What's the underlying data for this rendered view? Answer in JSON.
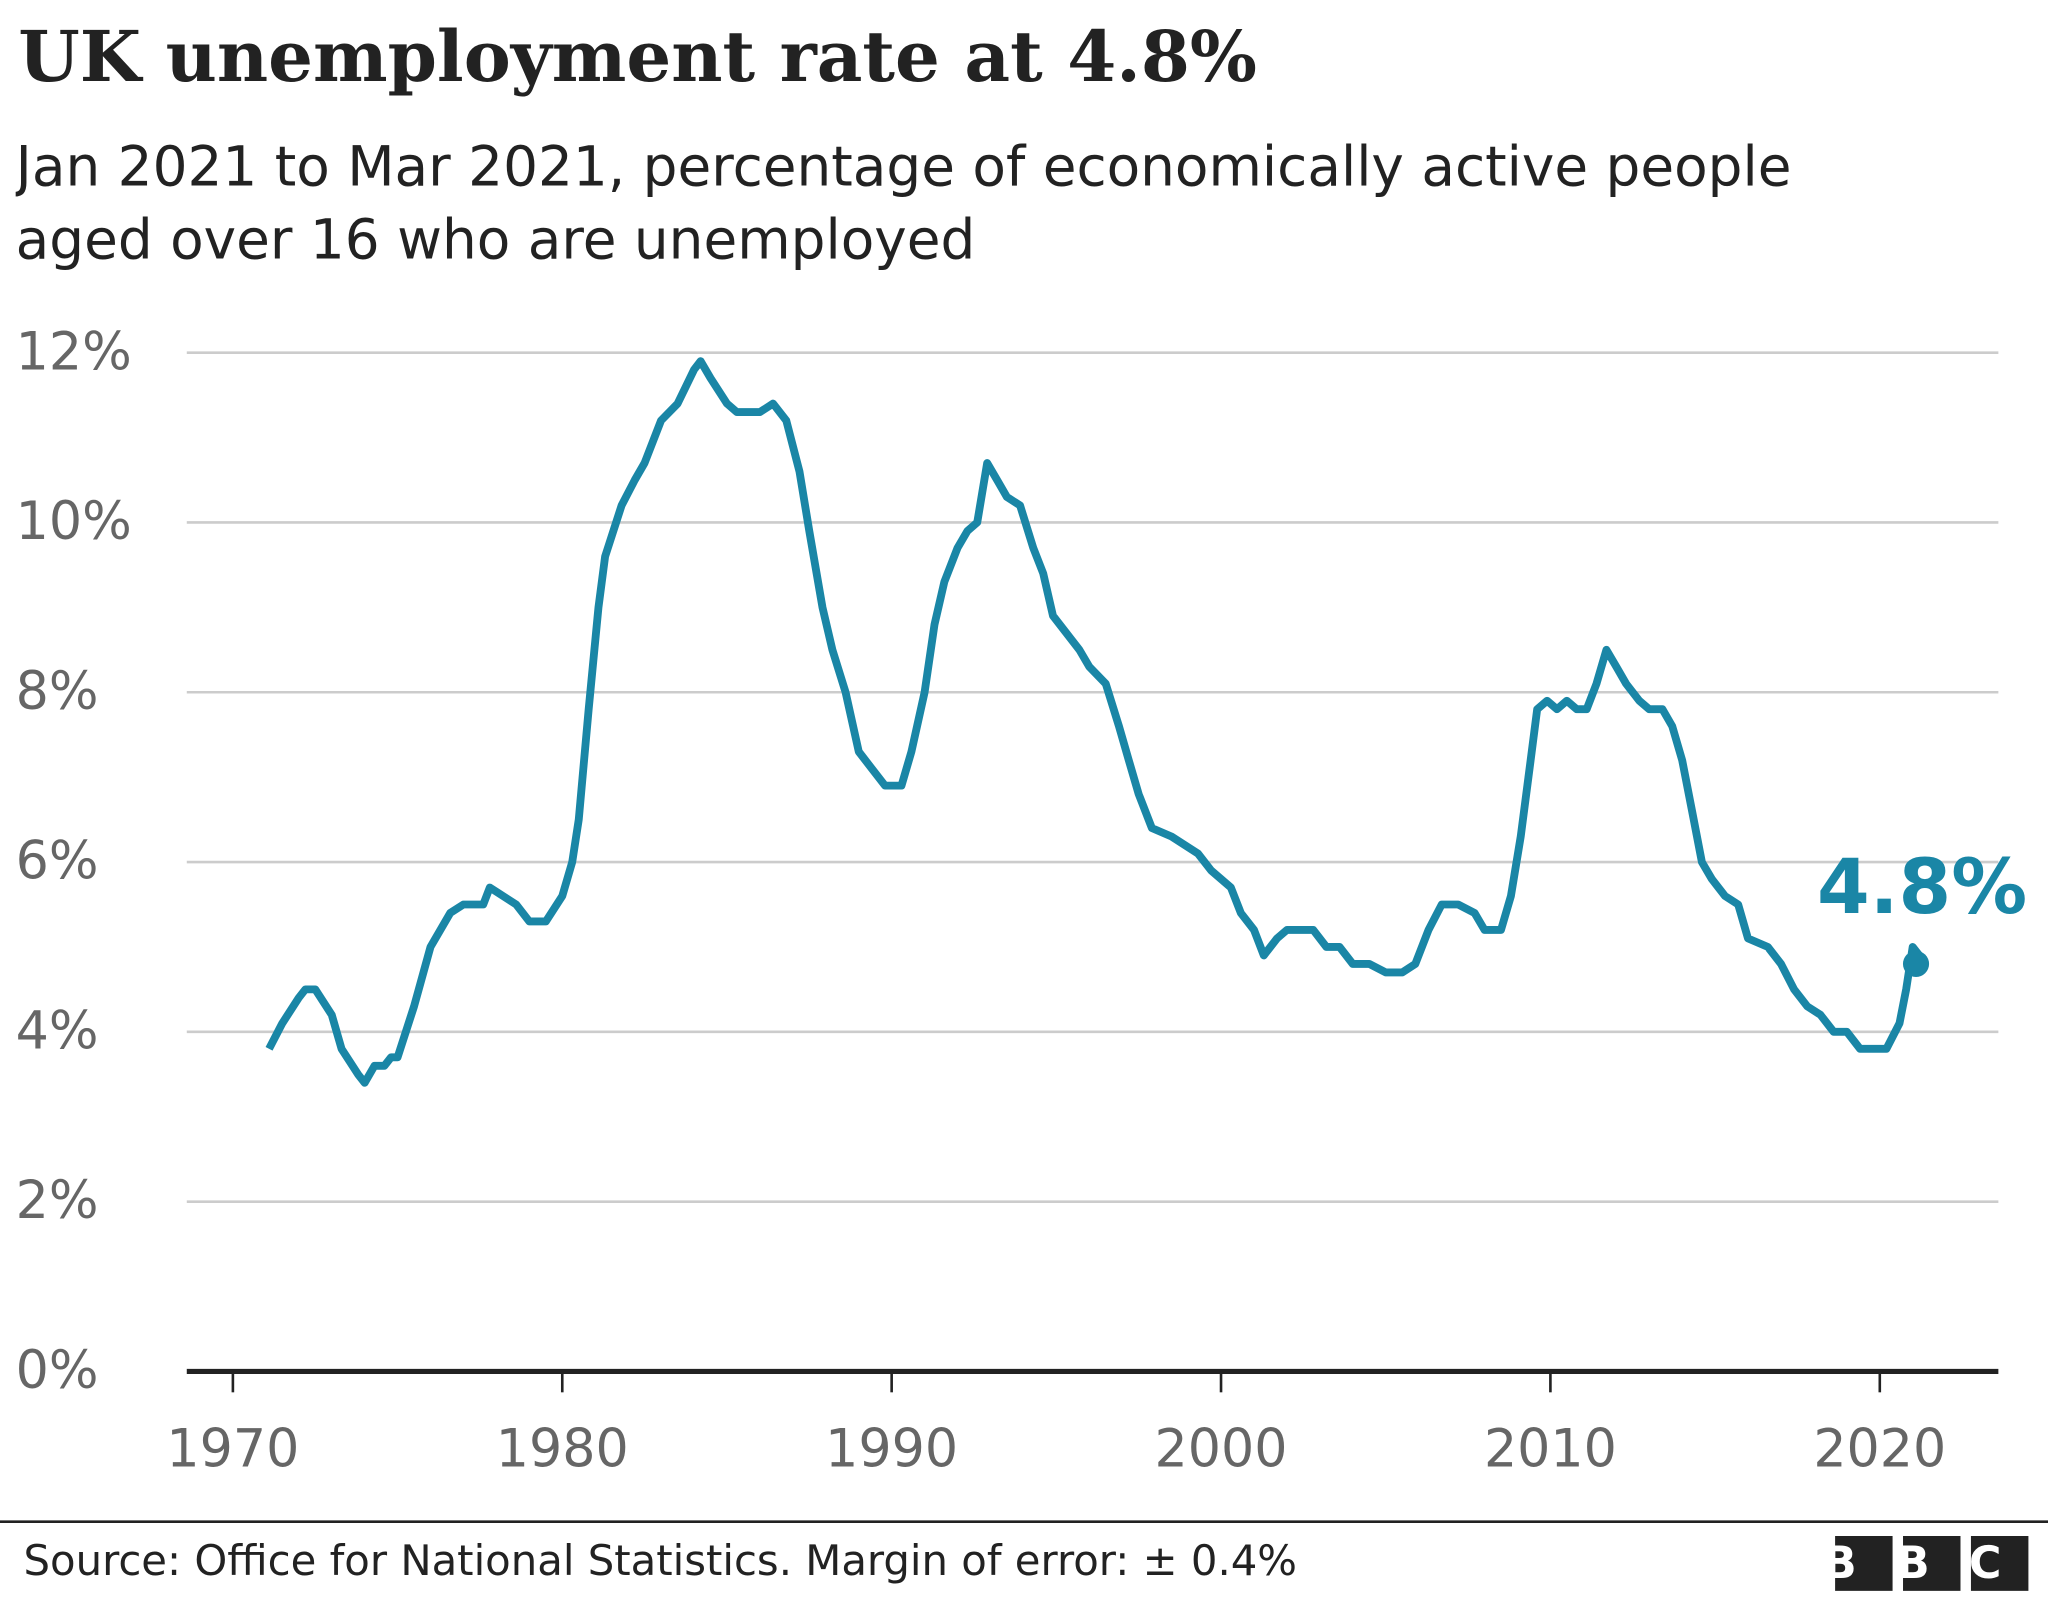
{
  "chart_data": {
    "type": "line",
    "title": "UK unemployment rate at 4.8%",
    "subtitle": "Jan 2021 to Mar 2021, percentage of economically active people aged over 16 who are unemployed",
    "source": "Source: Office for National Statistics. Margin of error: ± 0.4%",
    "logo": "BBC",
    "color": "#1a86a6",
    "x": [
      1971.1,
      1971.5,
      1972.0,
      1972.2,
      1972.5,
      1973.0,
      1973.3,
      1973.8,
      1974.0,
      1974.3,
      1974.6,
      1974.8,
      1975.0,
      1975.5,
      1976.0,
      1976.6,
      1977.0,
      1977.6,
      1977.8,
      1978.2,
      1978.6,
      1979.0,
      1979.5,
      1980.0,
      1980.3,
      1980.5,
      1980.8,
      1981.1,
      1981.3,
      1981.8,
      1982.2,
      1982.5,
      1983.0,
      1983.5,
      1984.0,
      1984.2,
      1984.5,
      1985.0,
      1985.3,
      1986.0,
      1986.4,
      1986.8,
      1987.2,
      1987.5,
      1987.9,
      1988.2,
      1988.6,
      1989.0,
      1989.4,
      1989.8,
      1990.3,
      1990.6,
      1991.0,
      1991.3,
      1991.6,
      1992.0,
      1992.3,
      1992.6,
      1992.9,
      1993.2,
      1993.5,
      1993.9,
      1994.3,
      1994.6,
      1994.9,
      1995.3,
      1995.7,
      1996.0,
      1996.5,
      1996.9,
      1997.2,
      1997.5,
      1997.9,
      1998.5,
      1998.9,
      1999.3,
      1999.7,
      2000.3,
      2000.6,
      2001.0,
      2001.3,
      2001.7,
      2002.0,
      2002.5,
      2002.8,
      2003.2,
      2003.6,
      2004.0,
      2004.5,
      2005.0,
      2005.5,
      2005.9,
      2006.3,
      2006.7,
      2007.2,
      2007.7,
      2008.0,
      2008.5,
      2008.8,
      2009.1,
      2009.4,
      2009.6,
      2009.9,
      2010.2,
      2010.5,
      2010.8,
      2011.1,
      2011.4,
      2011.7,
      2012.0,
      2012.3,
      2012.7,
      2013.0,
      2013.4,
      2013.7,
      2014.0,
      2014.3,
      2014.6,
      2014.9,
      2015.3,
      2015.7,
      2016.0,
      2016.6,
      2017.0,
      2017.4,
      2017.8,
      2018.2,
      2018.6,
      2019.0,
      2019.4,
      2019.8,
      2020.2,
      2020.6,
      2020.8,
      2021.0,
      2021.2
    ],
    "values": [
      3.8,
      4.1,
      4.4,
      4.5,
      4.5,
      4.2,
      3.8,
      3.5,
      3.4,
      3.6,
      3.6,
      3.7,
      3.7,
      4.3,
      5.0,
      5.4,
      5.5,
      5.5,
      5.7,
      5.6,
      5.5,
      5.3,
      5.3,
      5.6,
      6.0,
      6.5,
      7.8,
      9.0,
      9.6,
      10.2,
      10.5,
      10.7,
      11.2,
      11.4,
      11.8,
      11.9,
      11.7,
      11.4,
      11.3,
      11.3,
      11.4,
      11.2,
      10.6,
      9.9,
      9.0,
      8.5,
      8.0,
      7.3,
      7.1,
      6.9,
      6.9,
      7.3,
      8.0,
      8.8,
      9.3,
      9.7,
      9.9,
      10.0,
      10.7,
      10.5,
      10.3,
      10.2,
      9.7,
      9.4,
      8.9,
      8.7,
      8.5,
      8.3,
      8.1,
      7.6,
      7.2,
      6.8,
      6.4,
      6.3,
      6.2,
      6.1,
      5.9,
      5.7,
      5.4,
      5.2,
      4.9,
      5.1,
      5.2,
      5.2,
      5.2,
      5.0,
      5.0,
      4.8,
      4.8,
      4.7,
      4.7,
      4.8,
      5.2,
      5.5,
      5.5,
      5.4,
      5.2,
      5.2,
      5.6,
      6.3,
      7.2,
      7.8,
      7.9,
      7.8,
      7.9,
      7.8,
      7.8,
      8.1,
      8.5,
      8.3,
      8.1,
      7.9,
      7.8,
      7.8,
      7.6,
      7.2,
      6.6,
      6.0,
      5.8,
      5.6,
      5.5,
      5.1,
      5.0,
      4.8,
      4.5,
      4.3,
      4.2,
      4.0,
      4.0,
      3.8,
      3.8,
      3.8,
      4.1,
      4.5,
      5.0,
      4.9
    ],
    "annotation": {
      "x": 2021.1,
      "value": 4.8,
      "label": "4.8%"
    },
    "xlim": [
      1968.6,
      2023.6
    ],
    "xticks": [
      1970,
      1980,
      1990,
      2000,
      2010,
      2020
    ],
    "ylim": [
      0,
      12
    ],
    "yticks": [
      {
        "value": 0,
        "label": "0%"
      },
      {
        "value": 2,
        "label": "2%"
      },
      {
        "value": 4,
        "label": "4%"
      },
      {
        "value": 6,
        "label": "6%"
      },
      {
        "value": 8,
        "label": "8%"
      },
      {
        "value": 10,
        "label": "10%"
      },
      {
        "value": 12,
        "label": "12%"
      }
    ],
    "grid": true
  }
}
